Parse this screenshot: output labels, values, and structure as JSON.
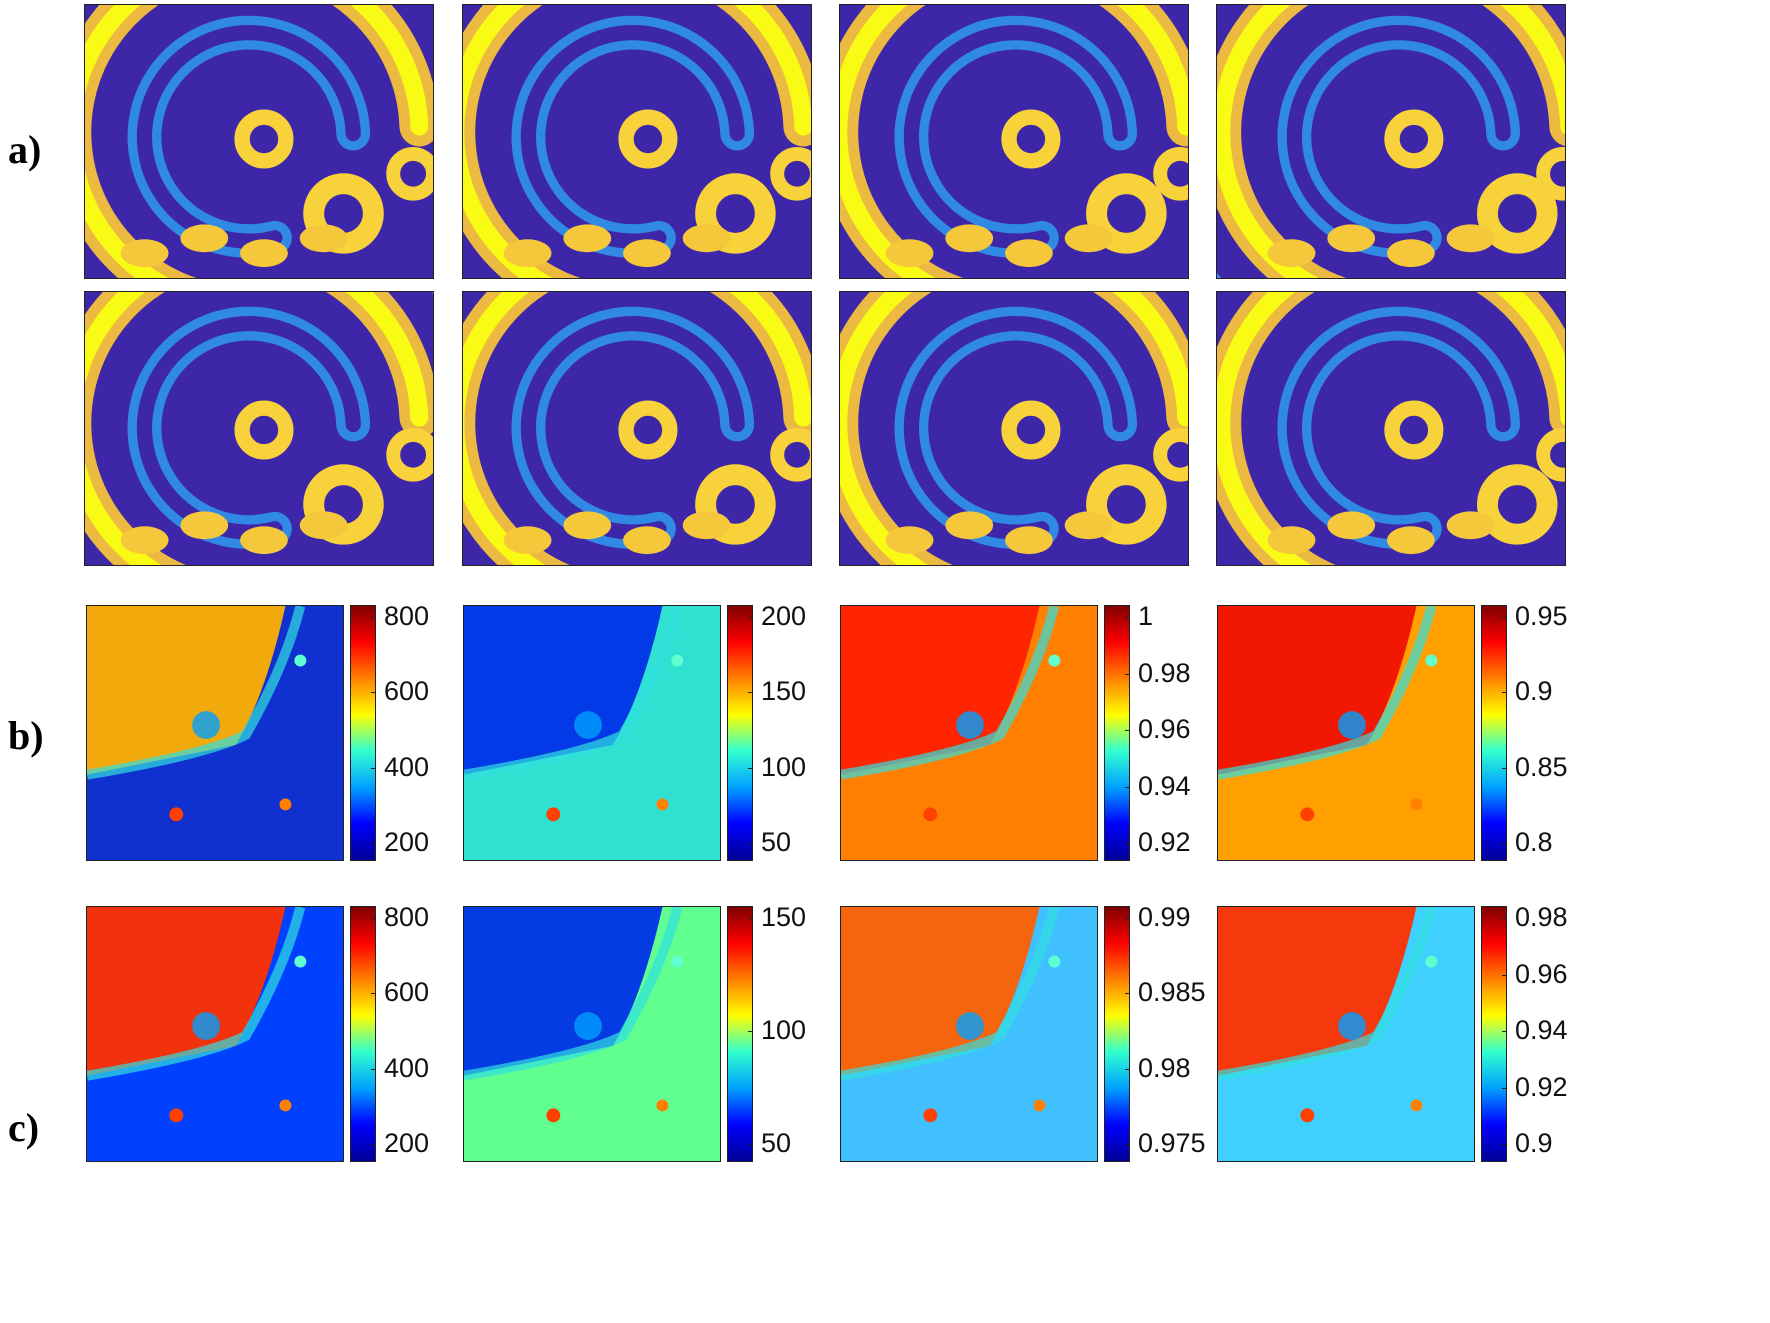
{
  "row_labels": {
    "a": "a)",
    "b": "b)",
    "c": "c)"
  },
  "colormaps": {
    "parula": [
      "#3e26a8",
      "#2c73fe",
      "#17b9c7",
      "#7cd265",
      "#f8ba3c",
      "#f9fb15"
    ],
    "jet": [
      "#000096",
      "#0000ff",
      "#00a0ff",
      "#30ffcf",
      "#ffff00",
      "#ff8000",
      "#ff0000",
      "#800000"
    ]
  },
  "colorbars": {
    "b": [
      {
        "ticks": [
          "800",
          "600",
          "400",
          "200"
        ]
      },
      {
        "ticks": [
          "200",
          "150",
          "100",
          "50"
        ]
      },
      {
        "ticks": [
          "1",
          "0.98",
          "0.96",
          "0.94",
          "0.92"
        ]
      },
      {
        "ticks": [
          "0.95",
          "0.9",
          "0.85",
          "0.8"
        ]
      }
    ],
    "c": [
      {
        "ticks": [
          "800",
          "600",
          "400",
          "200"
        ]
      },
      {
        "ticks": [
          "150",
          "100",
          "50"
        ]
      },
      {
        "ticks": [
          "0.99",
          "0.985",
          "0.98",
          "0.975"
        ]
      },
      {
        "ticks": [
          "0.98",
          "0.96",
          "0.94",
          "0.92",
          "0.9"
        ]
      }
    ]
  }
}
